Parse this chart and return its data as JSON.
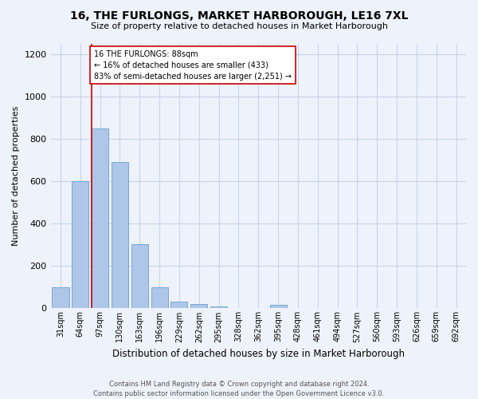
{
  "title": "16, THE FURLONGS, MARKET HARBOROUGH, LE16 7XL",
  "subtitle": "Size of property relative to detached houses in Market Harborough",
  "xlabel": "Distribution of detached houses by size in Market Harborough",
  "ylabel": "Number of detached properties",
  "footer_line1": "Contains HM Land Registry data © Crown copyright and database right 2024.",
  "footer_line2": "Contains public sector information licensed under the Open Government Licence v3.0.",
  "bar_labels": [
    "31sqm",
    "64sqm",
    "97sqm",
    "130sqm",
    "163sqm",
    "196sqm",
    "229sqm",
    "262sqm",
    "295sqm",
    "328sqm",
    "362sqm",
    "395sqm",
    "428sqm",
    "461sqm",
    "494sqm",
    "527sqm",
    "560sqm",
    "593sqm",
    "626sqm",
    "659sqm",
    "692sqm"
  ],
  "bar_values": [
    100,
    600,
    850,
    690,
    305,
    100,
    30,
    20,
    10,
    0,
    0,
    15,
    0,
    0,
    0,
    0,
    0,
    0,
    0,
    0,
    0
  ],
  "bar_color": "#aec6e8",
  "bar_edge_color": "#6aa0cc",
  "grid_color": "#c8d4e8",
  "background_color": "#eef2fa",
  "vline_color": "#cc0000",
  "annotation_text": "16 THE FURLONGS: 88sqm\n← 16% of detached houses are smaller (433)\n83% of semi-detached houses are larger (2,251) →",
  "annotation_box_color": "#ffffff",
  "annotation_box_edge": "#cc0000",
  "ylim": [
    0,
    1250
  ],
  "yticks": [
    0,
    200,
    400,
    600,
    800,
    1000,
    1200
  ]
}
